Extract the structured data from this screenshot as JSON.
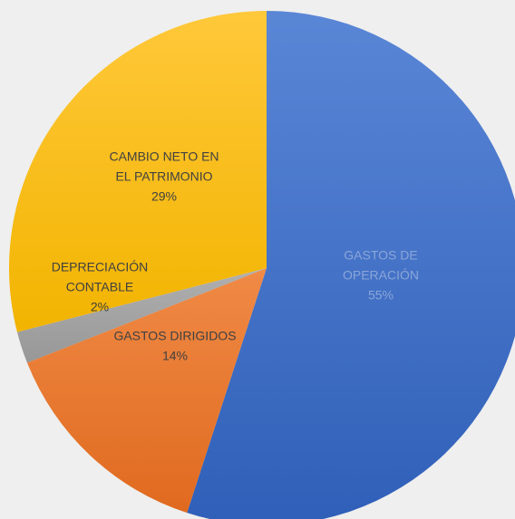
{
  "chart_data": {
    "type": "pie",
    "title": "",
    "slices": [
      {
        "label_lines": [
          "GASTOS DE",
          "OPERACIÓN"
        ],
        "percent_label": "55%",
        "value": 55,
        "color": "#4472c4",
        "label_color": "#8aa6d8"
      },
      {
        "label_lines": [
          "GASTOS DIRIGIDOS"
        ],
        "percent_label": "14%",
        "value": 14,
        "color": "#ed7d31",
        "label_color": "#404040"
      },
      {
        "label_lines": [
          "DEPRECIACIÓN",
          "CONTABLE"
        ],
        "percent_label": "2%",
        "value": 2,
        "color": "#a5a5a5",
        "label_color": "#404040"
      },
      {
        "label_lines": [
          "CAMBIO NETO EN",
          "EL PATRIMONIO"
        ],
        "percent_label": "29%",
        "value": 29,
        "color": "#ffc000",
        "label_color": "#404040"
      }
    ],
    "legend": "none"
  }
}
